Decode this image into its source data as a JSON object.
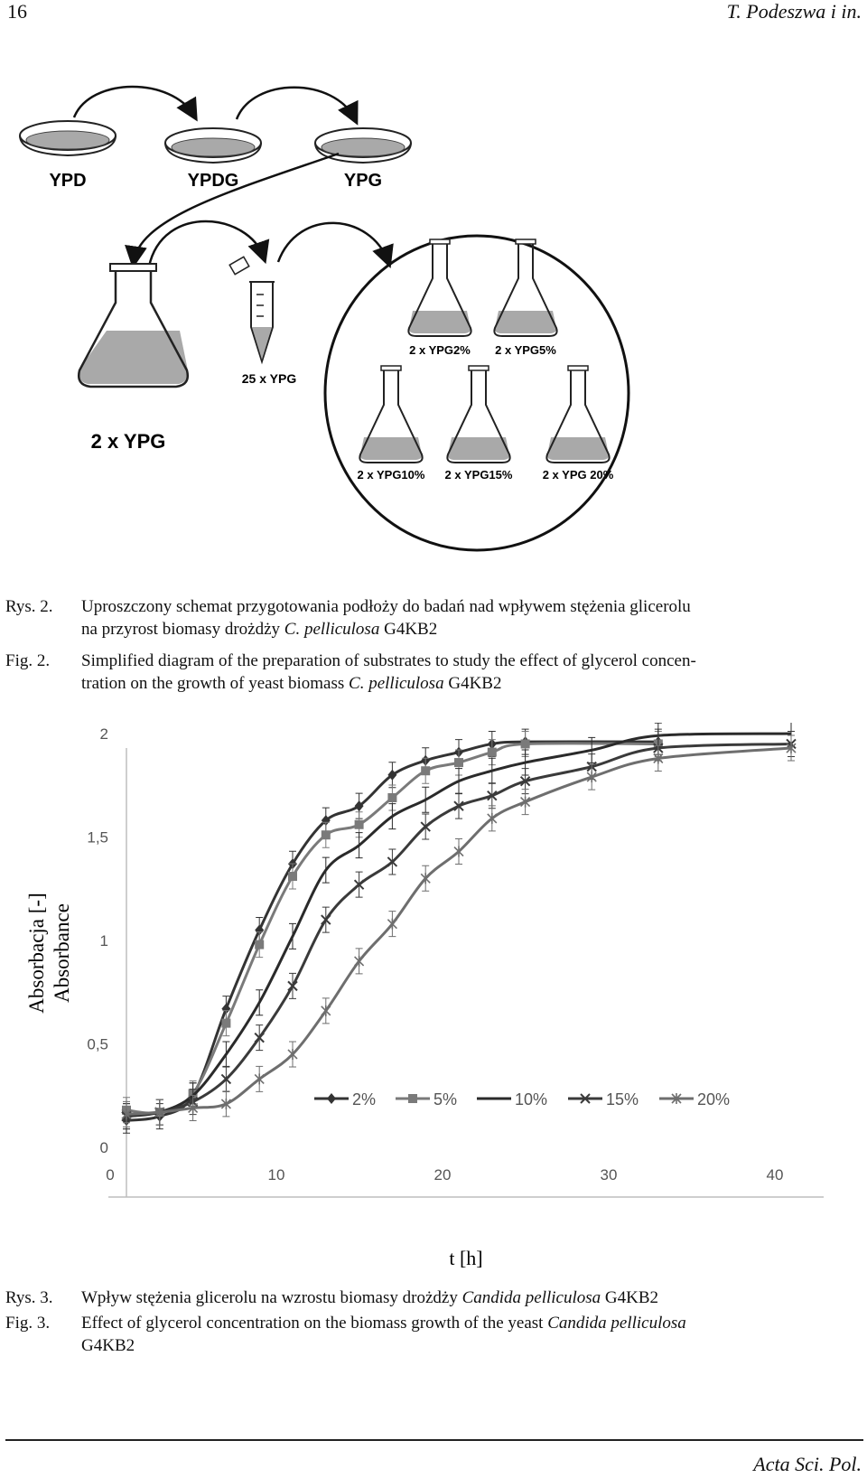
{
  "header": {
    "page_number": "16",
    "authors": "T. Podeszwa i in."
  },
  "diagram": {
    "dish_labels": [
      "YPD",
      "YPDG",
      "YPG"
    ],
    "big_flask_label": "2 x YPG",
    "tube_label": "25 x YPG",
    "circle_flask_labels": [
      "2 x YPG2%",
      "2 x YPG5%",
      "2 x YPG10%",
      "2 x YPG15%",
      "2 x YPG 20%"
    ],
    "liquid_color": "#a9a9a9"
  },
  "caption2": {
    "pl_label": "Rys. 2.",
    "pl_line1": "Uproszczony schemat przygotowania podłoży do badań nad wpływem stężenia glicerolu",
    "pl_line2_a": "na przyrost biomasy drożdży ",
    "pl_line2_i": "C. pelliculosa",
    "pl_line2_b": " G4KB2",
    "en_label": "Fig. 2.",
    "en_line1": "Simplified diagram of the preparation of substrates to study the effect of glycerol concen-",
    "en_line2_a": "tration on the growth of yeast biomass ",
    "en_line2_i": "C. pelliculosa",
    "en_line2_b": " G4KB2"
  },
  "chart_data": {
    "type": "line",
    "ylabel_pl": "Absorbacja [-]",
    "ylabel_en": "Absorbance",
    "xlabel": "t [h]",
    "xlim": [
      0,
      40
    ],
    "ylim": [
      0,
      2
    ],
    "xticks": [
      "0",
      "10",
      "20",
      "30",
      "40"
    ],
    "yticks": [
      "0",
      "0,5",
      "1",
      "1,5",
      "2"
    ],
    "grid": false,
    "legend_position": "lower-right",
    "series": [
      {
        "name": "2%",
        "marker": "diamond",
        "color": "#333333",
        "x": [
          0,
          2,
          4,
          6,
          8,
          10,
          12,
          14,
          16,
          18,
          20,
          22,
          24,
          32
        ],
        "y": [
          0.13,
          0.15,
          0.25,
          0.67,
          1.05,
          1.37,
          1.58,
          1.65,
          1.8,
          1.87,
          1.91,
          1.95,
          1.96,
          1.96
        ]
      },
      {
        "name": "5%",
        "marker": "square",
        "color": "#7a7a7a",
        "x": [
          0,
          2,
          4,
          6,
          8,
          10,
          12,
          14,
          16,
          18,
          20,
          22,
          24,
          32
        ],
        "y": [
          0.18,
          0.17,
          0.26,
          0.6,
          0.98,
          1.31,
          1.51,
          1.56,
          1.69,
          1.82,
          1.86,
          1.91,
          1.95,
          1.95
        ]
      },
      {
        "name": "10%",
        "marker": "none",
        "color": "#2a2a2a",
        "x": [
          0,
          2,
          4,
          6,
          8,
          10,
          12,
          14,
          16,
          18,
          20,
          22,
          24,
          28,
          32,
          40
        ],
        "y": [
          0.15,
          0.17,
          0.25,
          0.45,
          0.7,
          1.02,
          1.34,
          1.46,
          1.6,
          1.68,
          1.77,
          1.82,
          1.86,
          1.92,
          1.99,
          2.0
        ]
      },
      {
        "name": "15%",
        "marker": "x",
        "color": "#3a3a3a",
        "x": [
          0,
          2,
          4,
          6,
          8,
          10,
          12,
          14,
          16,
          18,
          20,
          22,
          24,
          28,
          32,
          40
        ],
        "y": [
          0.15,
          0.17,
          0.22,
          0.33,
          0.53,
          0.78,
          1.1,
          1.27,
          1.38,
          1.55,
          1.65,
          1.7,
          1.77,
          1.84,
          1.93,
          1.95
        ]
      },
      {
        "name": "20%",
        "marker": "star",
        "color": "#6e6e6e",
        "x": [
          0,
          2,
          4,
          6,
          8,
          10,
          12,
          14,
          16,
          18,
          20,
          22,
          24,
          28,
          32,
          40
        ],
        "y": [
          0.16,
          0.17,
          0.19,
          0.21,
          0.33,
          0.45,
          0.66,
          0.9,
          1.08,
          1.3,
          1.43,
          1.59,
          1.67,
          1.79,
          1.88,
          1.93
        ]
      }
    ]
  },
  "caption3": {
    "pl_label": "Rys. 3.",
    "pl_text_a": "Wpływ stężenia glicerolu na wzrostu biomasy drożdży ",
    "pl_text_i": "Candida pelliculosa",
    "pl_text_b": " G4KB2",
    "en_label": "Fig. 3.",
    "en_text_a": "Effect of glycerol concentration on the biomass growth of the yeast ",
    "en_text_i": "Candida pelliculosa",
    "en_line2": "G4KB2"
  },
  "footer": {
    "journal": "Acta Sci. Pol."
  }
}
